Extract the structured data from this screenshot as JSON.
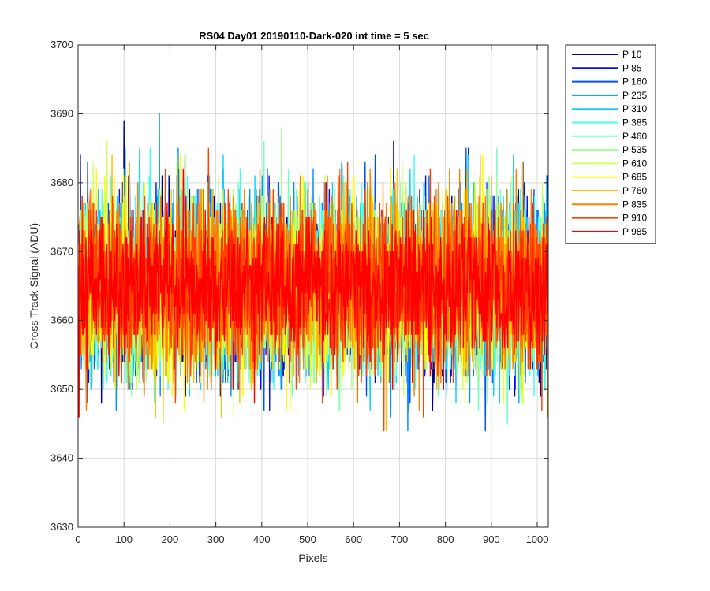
{
  "chart_data": {
    "type": "line",
    "title": "RS04 Day01 20190110-Dark-020 int time = 5 sec",
    "xlabel": "Pixels",
    "ylabel": "Cross Track Signal (ADU)",
    "xlim": [
      0,
      1024
    ],
    "ylim": [
      3630,
      3700
    ],
    "xticks": [
      "0",
      "100",
      "200",
      "300",
      "400",
      "500",
      "600",
      "700",
      "800",
      "900",
      "1000"
    ],
    "yticks": [
      "3630",
      "3640",
      "3650",
      "3660",
      "3670",
      "3680",
      "3690",
      "3700"
    ],
    "grid": true,
    "legend_position": "outside-right",
    "num_points": 1024,
    "series": [
      {
        "name": "P 10",
        "color": "#00008f",
        "mean": 3665,
        "noise": 6.2
      },
      {
        "name": "P 85",
        "color": "#0010ff",
        "mean": 3665,
        "noise": 6.2
      },
      {
        "name": "P 160",
        "color": "#0050ff",
        "mean": 3665,
        "noise": 6.2
      },
      {
        "name": "P 235",
        "color": "#0090ff",
        "mean": 3665,
        "noise": 6.2
      },
      {
        "name": "P 310",
        "color": "#10cfff",
        "mean": 3665,
        "noise": 6.2
      },
      {
        "name": "P 385",
        "color": "#40ffef",
        "mean": 3665,
        "noise": 6.2
      },
      {
        "name": "P 460",
        "color": "#70ffbf",
        "mean": 3665,
        "noise": 6.2
      },
      {
        "name": "P 535",
        "color": "#9fff8f",
        "mean": 3665,
        "noise": 6.2
      },
      {
        "name": "P 610",
        "color": "#cfff60",
        "mean": 3665,
        "noise": 6.2
      },
      {
        "name": "P 685",
        "color": "#ffff00",
        "mean": 3665,
        "noise": 6.2
      },
      {
        "name": "P 760",
        "color": "#ffc000",
        "mean": 3665,
        "noise": 6.2
      },
      {
        "name": "P 835",
        "color": "#ff8000",
        "mean": 3665,
        "noise": 6.2
      },
      {
        "name": "P 910",
        "color": "#ff4000",
        "mean": 3665,
        "noise": 6.2
      },
      {
        "name": "P 985",
        "color": "#ff0000",
        "mean": 3665,
        "noise": 5.2
      }
    ]
  }
}
